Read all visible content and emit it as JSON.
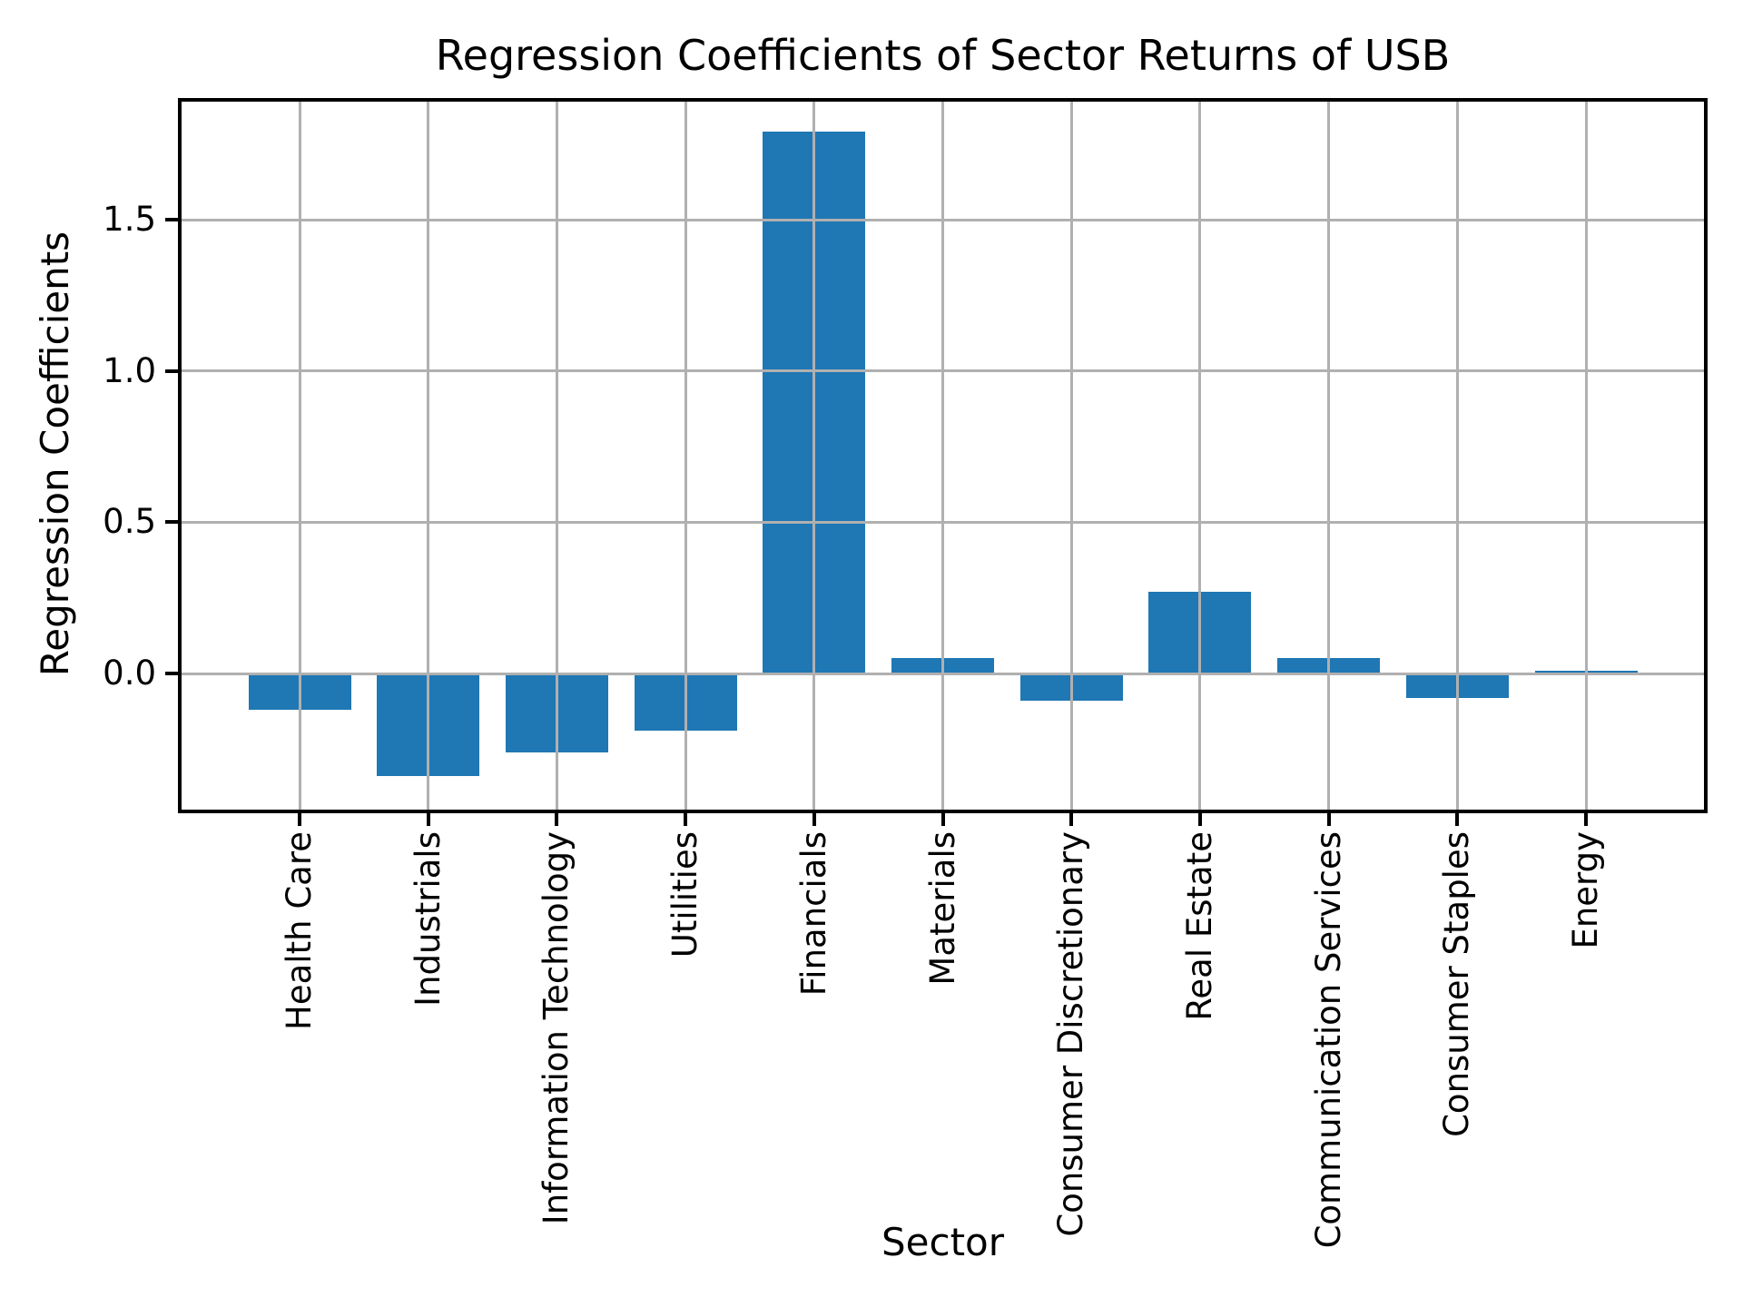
{
  "chart_data": {
    "type": "bar",
    "title": "Regression Coefficients of Sector Returns of USB",
    "xlabel": "Sector",
    "ylabel": "Regression Coefficients",
    "categories": [
      "Health Care",
      "Industrials",
      "Information Technology",
      "Utilities",
      "Financials",
      "Materials",
      "Consumer Discretionary",
      "Real Estate",
      "Communication Services",
      "Consumer Staples",
      "Energy"
    ],
    "values": [
      -0.12,
      -0.34,
      -0.26,
      -0.19,
      1.79,
      0.05,
      -0.09,
      0.27,
      0.05,
      -0.08,
      0.01
    ],
    "ytick_values": [
      0.0,
      0.5,
      1.0,
      1.5
    ],
    "ytick_labels": [
      "0.0",
      "0.5",
      "1.0",
      "1.5"
    ],
    "ylim": [
      -0.45,
      1.89
    ],
    "grid": true,
    "legend_position": "none",
    "bar_color": "#1f77b4",
    "grid_color": "#b0b0b0",
    "spine_color": "#000000",
    "text_color": "#000000"
  }
}
